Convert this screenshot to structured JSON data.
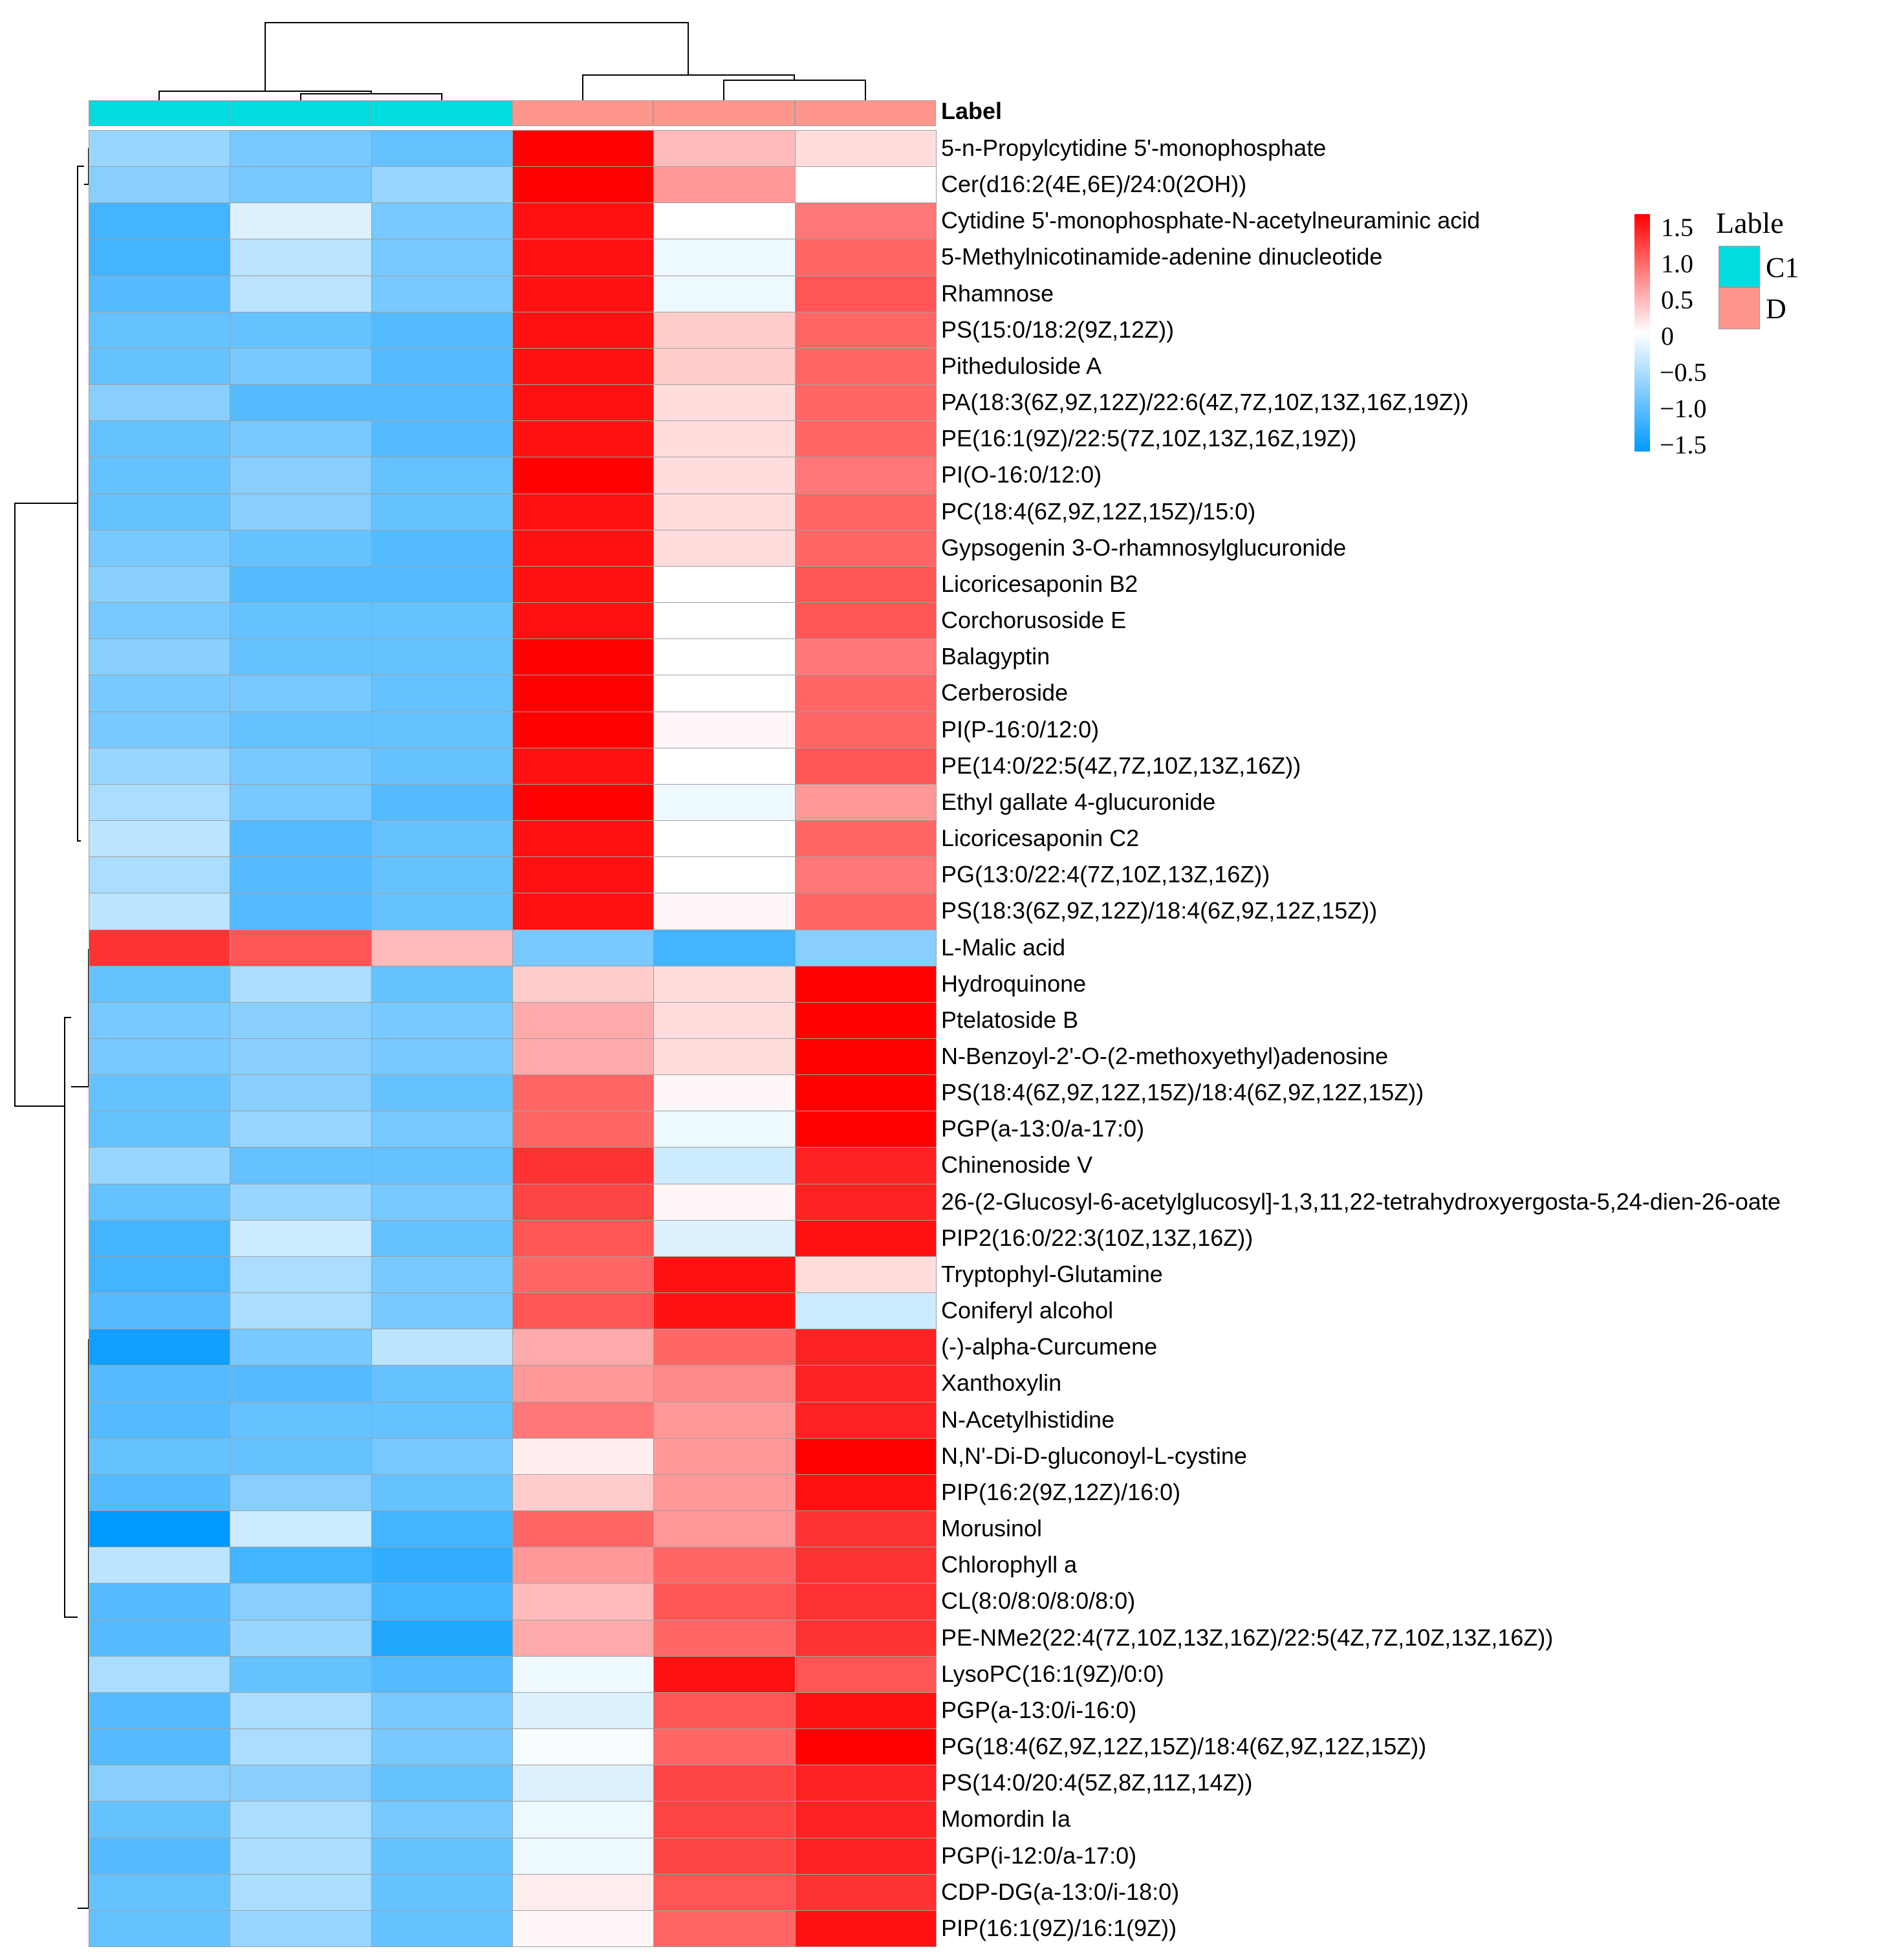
{
  "chart_data": {
    "type": "heatmap",
    "title": "",
    "annotation_title": "Label",
    "column_groups": [
      "C1",
      "C1",
      "C1",
      "D",
      "D",
      "D"
    ],
    "group_colors": {
      "C1": "#00DCE0",
      "D": "#FF968C"
    },
    "color_scale": {
      "min": -1.5,
      "max": 1.5,
      "low": "#0099FF",
      "mid": "#FFFFFF",
      "high": "#FF0000",
      "ticks": [
        "1.5",
        "1.0",
        "0.5",
        "0",
        "−0.5",
        "−1.0",
        "−1.5"
      ]
    },
    "legend": {
      "title": "Lable",
      "entries": [
        "C1",
        "D"
      ]
    },
    "rows": [
      {
        "name": "5-n-Propylcytidine 5'-monophosphate",
        "values": [
          -0.6,
          -0.8,
          -0.9,
          1.5,
          0.4,
          0.2
        ]
      },
      {
        "name": "Cer(d16:2(4E,6E)/24:0(2OH))",
        "values": [
          -0.7,
          -0.8,
          -0.6,
          1.5,
          0.6,
          0.0
        ]
      },
      {
        "name": "Cytidine 5'-monophosphate-N-acetylneuraminic acid",
        "values": [
          -1.1,
          -0.2,
          -0.8,
          1.4,
          0.0,
          0.8
        ]
      },
      {
        "name": "5-Methylnicotinamide-adenine dinucleotide",
        "values": [
          -1.1,
          -0.4,
          -0.8,
          1.4,
          -0.1,
          0.9
        ]
      },
      {
        "name": "Rhamnose",
        "values": [
          -1.0,
          -0.4,
          -0.8,
          1.4,
          -0.1,
          1.0
        ]
      },
      {
        "name": "PS(15:0/18:2(9Z,12Z))",
        "values": [
          -0.9,
          -0.9,
          -1.0,
          1.4,
          0.3,
          0.9
        ]
      },
      {
        "name": "Pitheduloside A",
        "values": [
          -0.9,
          -0.8,
          -1.0,
          1.4,
          0.3,
          0.9
        ]
      },
      {
        "name": "PA(18:3(6Z,9Z,12Z)/22:6(4Z,7Z,10Z,13Z,16Z,19Z))",
        "values": [
          -0.7,
          -1.0,
          -1.0,
          1.4,
          0.2,
          0.9
        ]
      },
      {
        "name": "PE(16:1(9Z)/22:5(7Z,10Z,13Z,16Z,19Z))",
        "values": [
          -0.9,
          -0.8,
          -1.0,
          1.4,
          0.2,
          0.9
        ]
      },
      {
        "name": "PI(O-16:0/12:0)",
        "values": [
          -0.9,
          -0.7,
          -0.9,
          1.5,
          0.2,
          0.8
        ]
      },
      {
        "name": "PC(18:4(6Z,9Z,12Z,15Z)/15:0)",
        "values": [
          -0.9,
          -0.7,
          -0.9,
          1.4,
          0.2,
          0.9
        ]
      },
      {
        "name": "Gypsogenin 3-O-rhamnosylglucuronide",
        "values": [
          -0.8,
          -0.9,
          -1.0,
          1.4,
          0.2,
          0.9
        ]
      },
      {
        "name": "Licoricesaponin B2",
        "values": [
          -0.7,
          -1.0,
          -1.0,
          1.4,
          0.0,
          1.0
        ]
      },
      {
        "name": "Corchorusoside E",
        "values": [
          -0.8,
          -0.9,
          -0.9,
          1.4,
          0.0,
          1.0
        ]
      },
      {
        "name": "Balagyptin",
        "values": [
          -0.7,
          -0.9,
          -0.9,
          1.5,
          0.0,
          0.8
        ]
      },
      {
        "name": "Cerberoside",
        "values": [
          -0.8,
          -0.8,
          -0.9,
          1.5,
          0.0,
          0.9
        ]
      },
      {
        "name": "PI(P-16:0/12:0)",
        "values": [
          -0.8,
          -0.9,
          -0.9,
          1.5,
          0.05,
          0.9
        ]
      },
      {
        "name": "PE(14:0/22:5(4Z,7Z,10Z,13Z,16Z))",
        "values": [
          -0.6,
          -0.8,
          -0.9,
          1.4,
          0.0,
          1.0
        ]
      },
      {
        "name": "Ethyl gallate 4-glucuronide",
        "values": [
          -0.5,
          -0.8,
          -1.0,
          1.5,
          -0.1,
          0.6
        ]
      },
      {
        "name": "Licoricesaponin C2",
        "values": [
          -0.4,
          -1.0,
          -0.9,
          1.4,
          0.0,
          0.9
        ]
      },
      {
        "name": "PG(13:0/22:4(7Z,10Z,13Z,16Z))",
        "values": [
          -0.5,
          -1.0,
          -0.9,
          1.4,
          0.0,
          0.8
        ]
      },
      {
        "name": "PS(18:3(6Z,9Z,12Z)/18:4(6Z,9Z,12Z,15Z))",
        "values": [
          -0.4,
          -1.0,
          -0.9,
          1.4,
          0.05,
          0.9
        ]
      },
      {
        "name": "L-Malic acid",
        "values": [
          1.2,
          1.0,
          0.4,
          -0.8,
          -1.1,
          -0.7
        ]
      },
      {
        "name": "Hydroquinone",
        "values": [
          -0.9,
          -0.5,
          -0.9,
          0.3,
          0.2,
          1.5
        ]
      },
      {
        "name": "Ptelatoside B",
        "values": [
          -0.8,
          -0.7,
          -0.8,
          0.5,
          0.2,
          1.5
        ]
      },
      {
        "name": "N-Benzoyl-2'-O-(2-methoxyethyl)adenosine",
        "values": [
          -0.8,
          -0.7,
          -0.8,
          0.5,
          0.2,
          1.5
        ]
      },
      {
        "name": "PS(18:4(6Z,9Z,12Z,15Z)/18:4(6Z,9Z,12Z,15Z))",
        "values": [
          -0.9,
          -0.7,
          -0.9,
          0.9,
          0.05,
          1.5
        ]
      },
      {
        "name": "PGP(a-13:0/a-17:0)",
        "values": [
          -0.9,
          -0.6,
          -0.8,
          0.9,
          -0.1,
          1.5
        ]
      },
      {
        "name": "Chinenoside V",
        "values": [
          -0.6,
          -0.9,
          -0.9,
          1.2,
          -0.3,
          1.3
        ]
      },
      {
        "name": "26-(2-Glucosyl-6-acetylglucosyl]-1,3,11,22-tetrahydroxyergosta-5,24-dien-26-oate",
        "values": [
          -0.9,
          -0.6,
          -0.8,
          1.1,
          0.05,
          1.3
        ]
      },
      {
        "name": "PIP2(16:0/22:3(10Z,13Z,16Z))",
        "values": [
          -1.1,
          -0.3,
          -0.9,
          1.0,
          -0.2,
          1.4
        ]
      },
      {
        "name": "Tryptophyl-Glutamine",
        "values": [
          -1.1,
          -0.5,
          -0.8,
          0.9,
          1.4,
          0.2
        ]
      },
      {
        "name": "Coniferyl alcohol",
        "values": [
          -1.0,
          -0.5,
          -0.8,
          1.0,
          1.4,
          -0.3
        ]
      },
      {
        "name": "(-)-alpha-Curcumene",
        "values": [
          -1.4,
          -0.8,
          -0.4,
          0.5,
          0.9,
          1.3
        ]
      },
      {
        "name": "Xanthoxylin",
        "values": [
          -1.0,
          -1.0,
          -0.9,
          0.6,
          0.7,
          1.3
        ]
      },
      {
        "name": "N-Acetylhistidine",
        "values": [
          -1.0,
          -0.9,
          -0.9,
          0.8,
          0.6,
          1.3
        ]
      },
      {
        "name": "N,N'-Di-D-gluconoyl-L-cystine",
        "values": [
          -0.9,
          -0.9,
          -0.8,
          0.1,
          0.6,
          1.5
        ]
      },
      {
        "name": "PIP(16:2(9Z,12Z)/16:0)",
        "values": [
          -1.0,
          -0.7,
          -0.9,
          0.3,
          0.6,
          1.4
        ]
      },
      {
        "name": "Morusinol",
        "values": [
          -1.5,
          -0.3,
          -1.1,
          0.9,
          0.6,
          1.2
        ]
      },
      {
        "name": "Chlorophyll a",
        "values": [
          -0.4,
          -1.1,
          -1.2,
          0.6,
          0.9,
          1.2
        ]
      },
      {
        "name": "CL(8:0/8:0/8:0/8:0)",
        "values": [
          -1.0,
          -0.7,
          -1.1,
          0.4,
          1.0,
          1.2
        ]
      },
      {
        "name": "PE-NMe2(22:4(7Z,10Z,13Z,16Z)/22:5(4Z,7Z,10Z,13Z,16Z))",
        "values": [
          -1.0,
          -0.6,
          -1.3,
          0.5,
          0.9,
          1.2
        ]
      },
      {
        "name": "LysoPC(16:1(9Z)/0:0)",
        "values": [
          -0.5,
          -0.9,
          -1.0,
          -0.1,
          1.4,
          1.0
        ]
      },
      {
        "name": "PGP(a-13:0/i-16:0)",
        "values": [
          -1.0,
          -0.5,
          -0.8,
          -0.2,
          1.0,
          1.4
        ]
      },
      {
        "name": "PG(18:4(6Z,9Z,12Z,15Z)/18:4(6Z,9Z,12Z,15Z))",
        "values": [
          -1.0,
          -0.5,
          -0.8,
          -0.05,
          0.9,
          1.5
        ]
      },
      {
        "name": "PS(14:0/20:4(5Z,8Z,11Z,14Z))",
        "values": [
          -0.7,
          -0.7,
          -0.9,
          -0.2,
          1.1,
          1.3
        ]
      },
      {
        "name": "Momordin Ia",
        "values": [
          -0.9,
          -0.5,
          -0.8,
          -0.1,
          1.1,
          1.3
        ]
      },
      {
        "name": "PGP(i-12:0/a-17:0)",
        "values": [
          -1.0,
          -0.5,
          -0.9,
          -0.1,
          1.1,
          1.3
        ]
      },
      {
        "name": "CDP-DG(a-13:0/i-18:0)",
        "values": [
          -0.9,
          -0.5,
          -0.9,
          0.1,
          1.0,
          1.2
        ]
      },
      {
        "name": "PIP(16:1(9Z)/16:1(9Z))",
        "values": [
          -0.9,
          -0.6,
          -0.9,
          0.05,
          0.9,
          1.4
        ]
      }
    ]
  }
}
